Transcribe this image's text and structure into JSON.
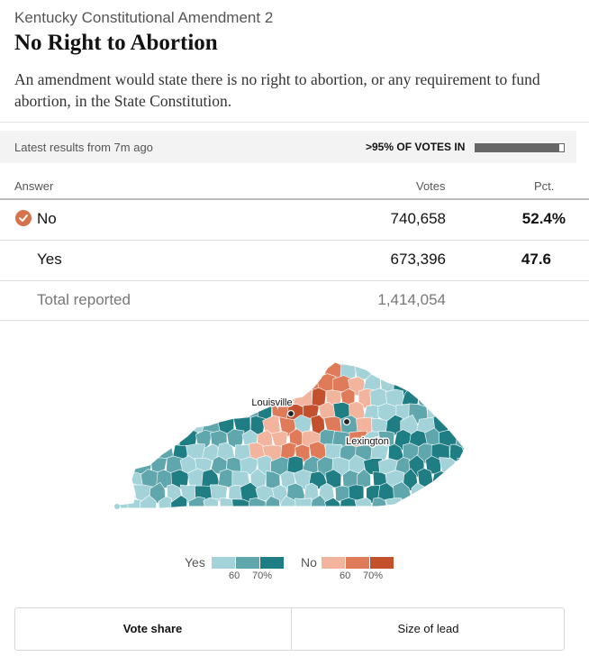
{
  "header": {
    "kicker": "Kentucky Constitutional Amendment 2",
    "title": "No Right to Abortion",
    "description": "An amendment would state there is no right to abortion, or any requirement to fund abortion, in the State Constitution."
  },
  "status": {
    "updated": "Latest results from 7m ago",
    "reporting_label": ">95% OF VOTES IN",
    "reporting_fraction": 0.95
  },
  "table": {
    "columns": [
      "Answer",
      "Votes",
      "Pct."
    ],
    "rows": [
      {
        "answer": "No",
        "votes": "740,658",
        "pct": "52.4%",
        "winner": true
      },
      {
        "answer": "Yes",
        "votes": "673,396",
        "pct": "47.6",
        "winner": false
      }
    ],
    "total": {
      "label": "Total reported",
      "votes": "1,414,054"
    }
  },
  "map": {
    "cities": [
      "Louisville",
      "Lexington"
    ]
  },
  "legend": {
    "yes_label": "Yes",
    "no_label": "No",
    "ticks": [
      "60",
      "70%"
    ],
    "yes_colors": [
      "#a3d3d9",
      "#5fa7ad",
      "#1f7d84"
    ],
    "no_colors": [
      "#f3b49e",
      "#e07b5a",
      "#c4512e"
    ]
  },
  "toggle": {
    "vote_share": "Vote share",
    "size_of_lead": "Size of lead"
  },
  "icons": {
    "winner": "check-icon"
  }
}
